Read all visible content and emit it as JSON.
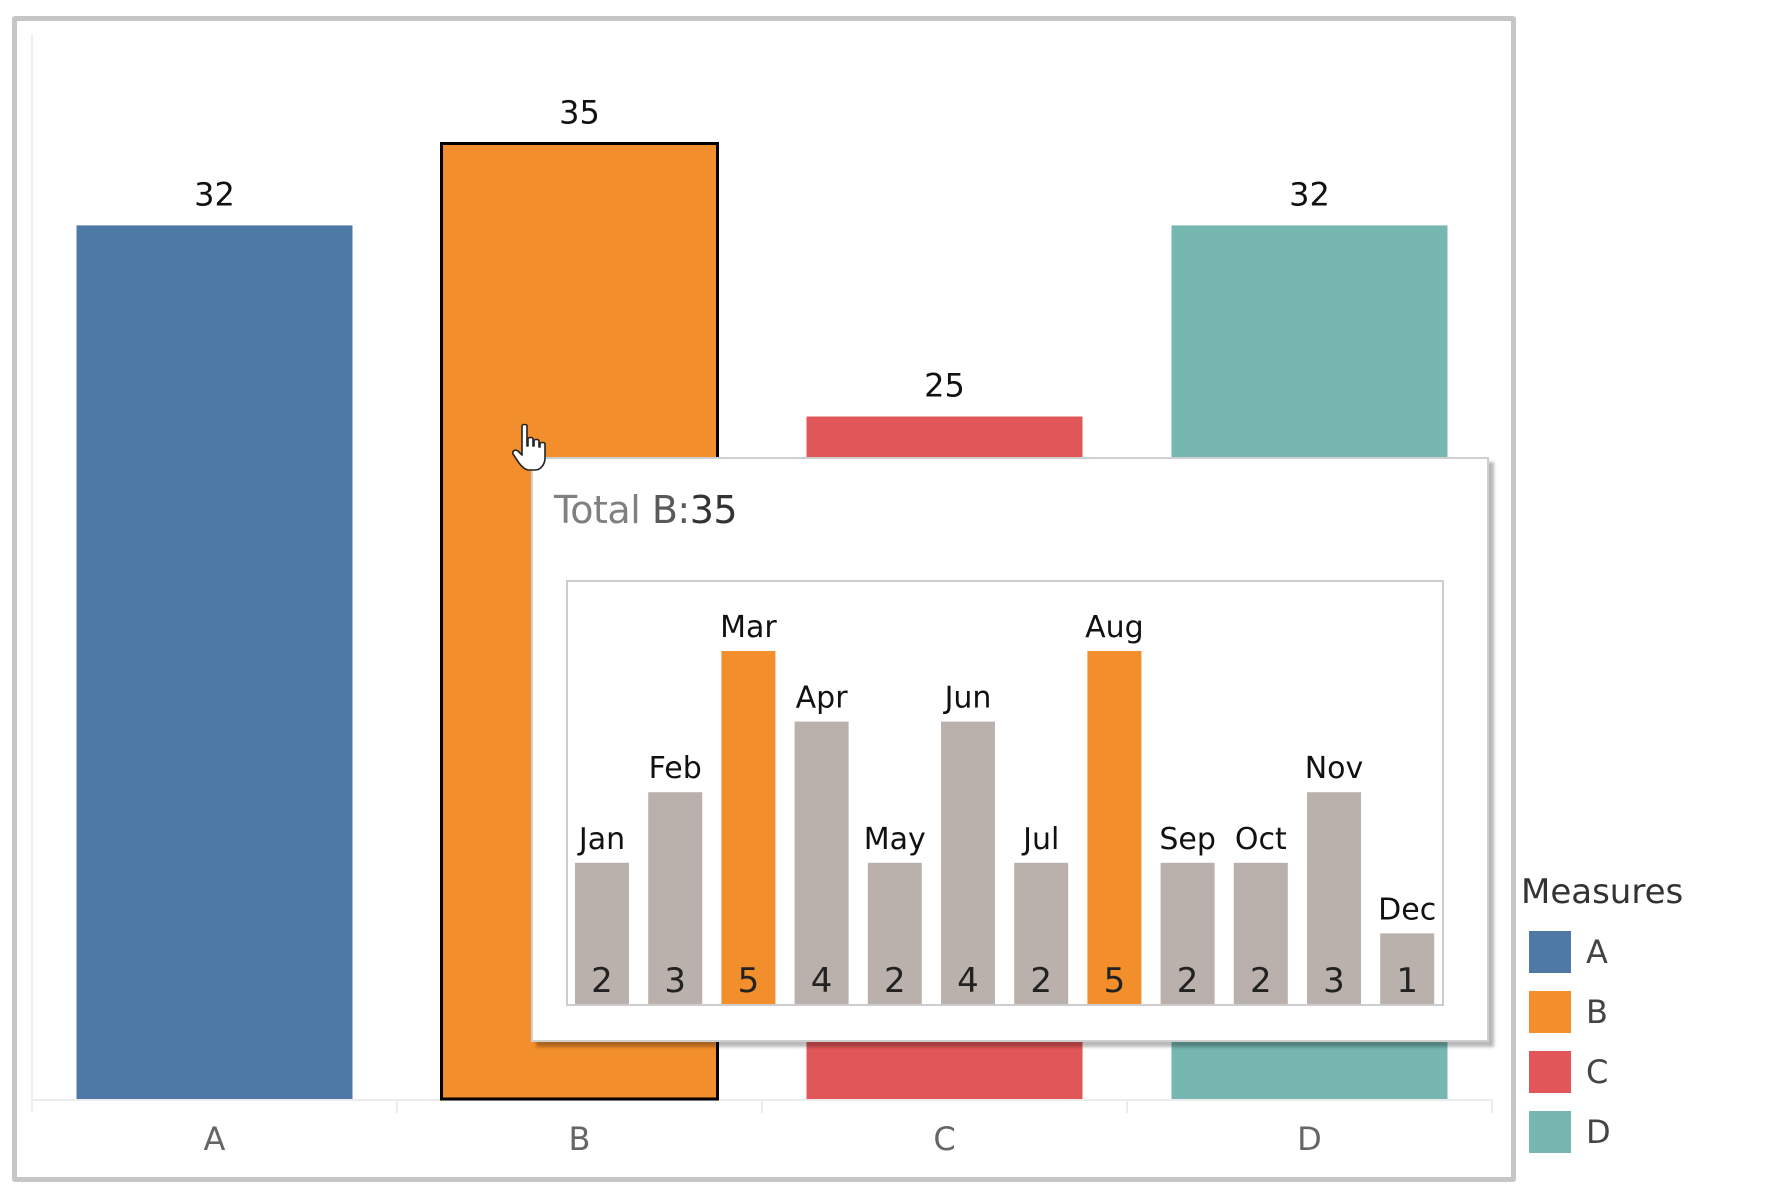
{
  "chart_data": {
    "type": "bar",
    "title": "",
    "xlabel": "",
    "ylabel": "",
    "categories": [
      "A",
      "B",
      "C",
      "D"
    ],
    "values": [
      32,
      35,
      25,
      32
    ],
    "colors": [
      "#4e79a7",
      "#f28e2b",
      "#e15759",
      "#76b7b2"
    ],
    "ylim": [
      0,
      38
    ],
    "grid": false,
    "selected_category": "B",
    "legend": {
      "title": "Measures",
      "placement": "right",
      "entries": [
        {
          "label": "A",
          "color": "#4e79a7"
        },
        {
          "label": "B",
          "color": "#f28e2b"
        },
        {
          "label": "C",
          "color": "#e15759"
        },
        {
          "label": "D",
          "color": "#76b7b2"
        }
      ]
    },
    "tooltip": {
      "title_prefix": "Total",
      "title_measure": "B:",
      "title_value": "35",
      "chart": {
        "type": "bar",
        "categories": [
          "Jan",
          "Feb",
          "Mar",
          "Apr",
          "May",
          "Jun",
          "Jul",
          "Aug",
          "Sep",
          "Oct",
          "Nov",
          "Dec"
        ],
        "values": [
          2,
          3,
          5,
          4,
          2,
          4,
          2,
          5,
          2,
          2,
          3,
          1
        ],
        "highlight_color": "#f28e2b",
        "base_color": "#bab0ac",
        "highlighted": [
          "Mar",
          "Aug"
        ],
        "ylim": [
          0,
          5
        ]
      }
    }
  }
}
